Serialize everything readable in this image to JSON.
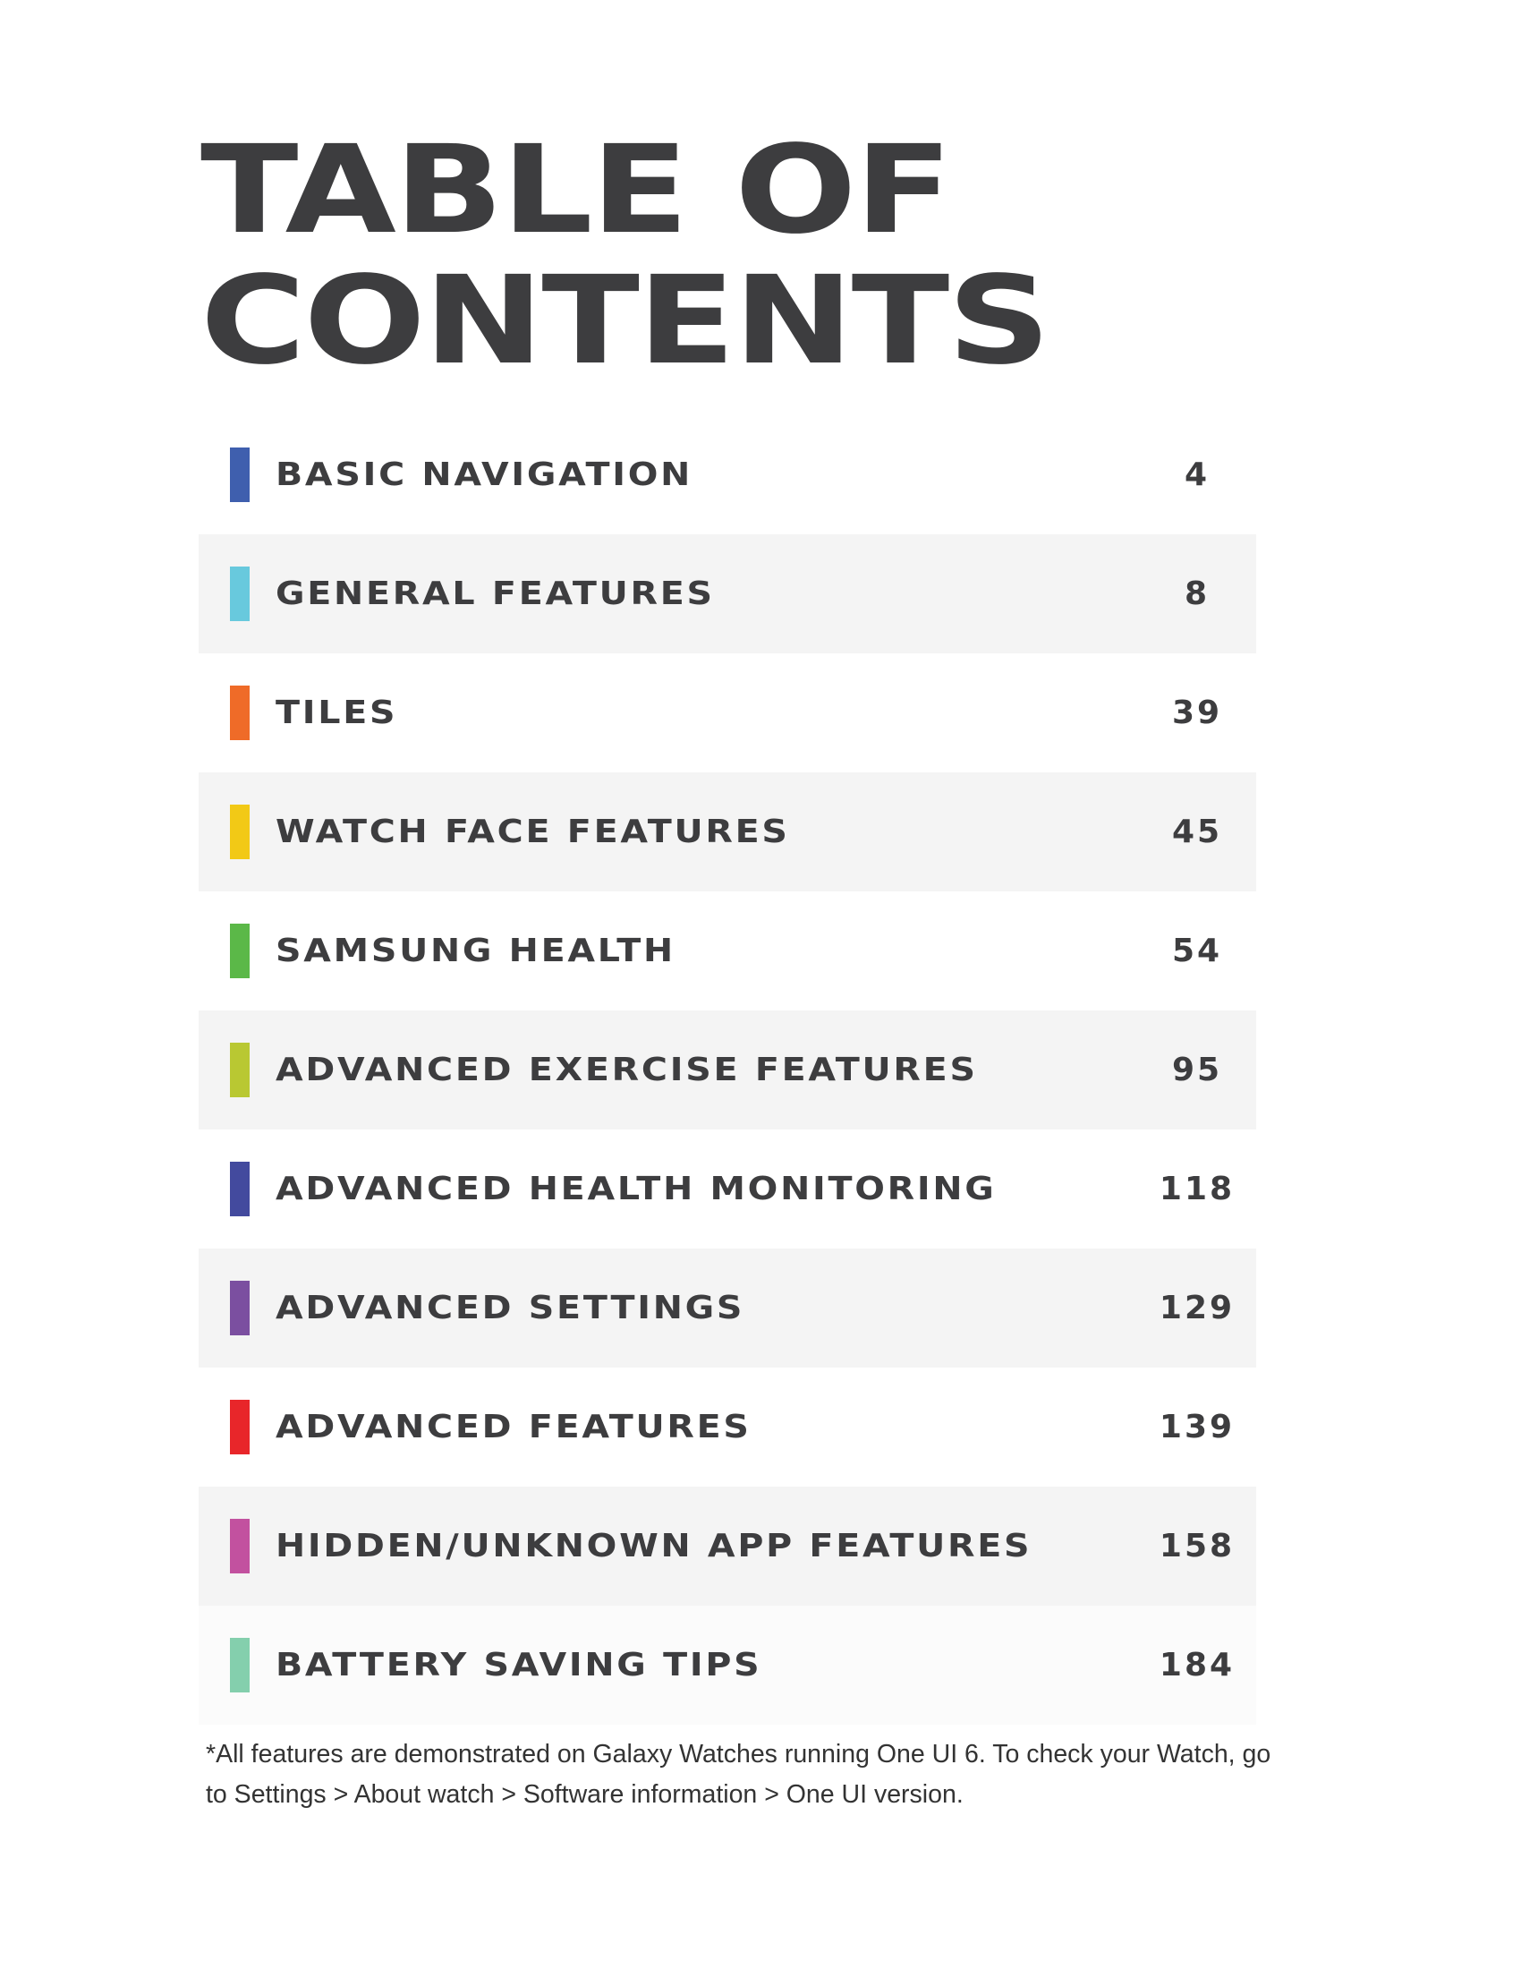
{
  "title": {
    "line1": "TABLE OF",
    "line2": "CONTENTS"
  },
  "toc": [
    {
      "label": "BASIC NAVIGATION",
      "page": "4",
      "color": "#3f5fae"
    },
    {
      "label": "GENERAL FEATURES",
      "page": "8",
      "color": "#68c9dd"
    },
    {
      "label": "TILES",
      "page": "39",
      "color": "#ef6b28"
    },
    {
      "label": "WATCH FACE FEATURES",
      "page": "45",
      "color": "#f2c916"
    },
    {
      "label": "SAMSUNG HEALTH",
      "page": "54",
      "color": "#5bb848"
    },
    {
      "label": "ADVANCED EXERCISE FEATURES",
      "page": "95",
      "color": "#b9c832"
    },
    {
      "label": "ADVANCED HEALTH MONITORING",
      "page": "118",
      "color": "#434a9e"
    },
    {
      "label": "ADVANCED SETTINGS",
      "page": "129",
      "color": "#7b4fa0"
    },
    {
      "label": "ADVANCED FEATURES",
      "page": "139",
      "color": "#e8262a"
    },
    {
      "label": "HIDDEN/UNKNOWN APP FEATURES",
      "page": "158",
      "color": "#c2519f"
    },
    {
      "label": "BATTERY SAVING TIPS",
      "page": "184",
      "color": "#84cfad"
    }
  ],
  "footnote": "*All features are demonstrated on Galaxy Watches running One UI 6. To check your Watch, go to Settings > About watch > Software information > One UI version."
}
